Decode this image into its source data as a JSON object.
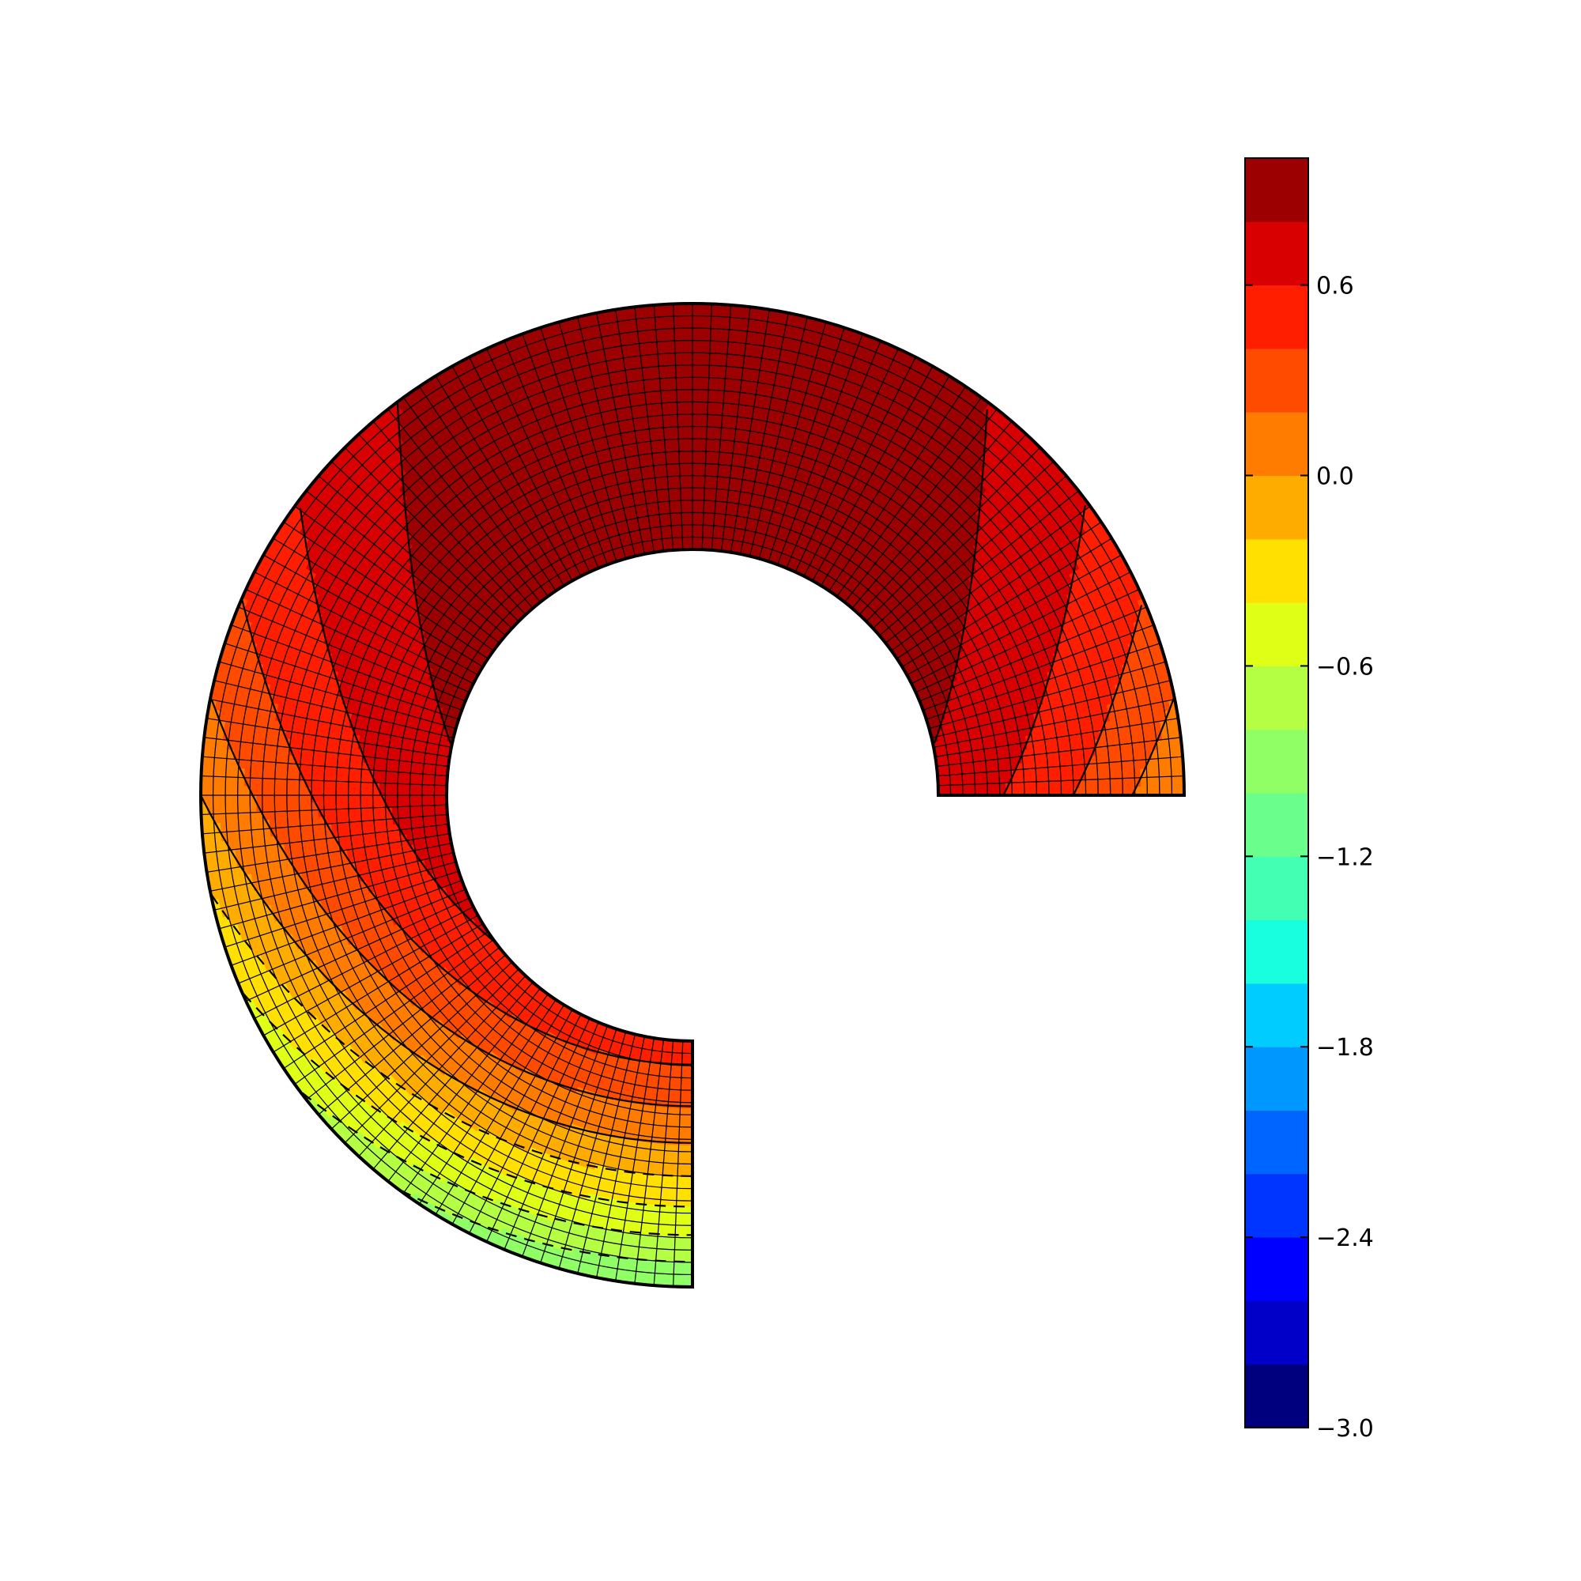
{
  "chart_data": {
    "type": "heatmap",
    "description_kind": "filled contour plot on a three-quarter annular mesh (polar domain)",
    "domain": {
      "angle_range_deg": [
        0,
        270
      ],
      "inner_radius": 1.0,
      "outer_radius": 2.0,
      "mesh_radial_cells": 20,
      "mesh_angular_cells": 120,
      "mesh_lines_visible": true,
      "dashed_contours_for_negative_levels": true
    },
    "field": {
      "min": -3.0,
      "max": 1.0,
      "maximum_location": "top of annulus (angle 90 deg)",
      "minimum_location": "bottom outer edge (angle 270 deg)"
    },
    "colormap": "jet",
    "colorbar": {
      "orientation": "vertical",
      "placement": "right",
      "levels_min": -3.0,
      "levels_max": 1.0,
      "level_step": 0.2,
      "band_colors": [
        "#00007f",
        "#0000c8",
        "#0000ff",
        "#0034ff",
        "#0064ff",
        "#0098ff",
        "#00ccff",
        "#17ffdf",
        "#43ffb3",
        "#6aff8c",
        "#90ff66",
        "#b4ff43",
        "#e0ff17",
        "#ffe000",
        "#ffac00",
        "#ff7c00",
        "#ff4b00",
        "#ff1e00",
        "#d80000",
        "#9c0000"
      ],
      "tick_values": [
        -3.0,
        -2.4,
        -1.8,
        -1.2,
        -0.6,
        0.0,
        0.6
      ],
      "tick_labels": [
        "−3.0",
        "−2.4",
        "−1.8",
        "−1.2",
        "−0.6",
        "0.0",
        "0.6"
      ]
    }
  }
}
